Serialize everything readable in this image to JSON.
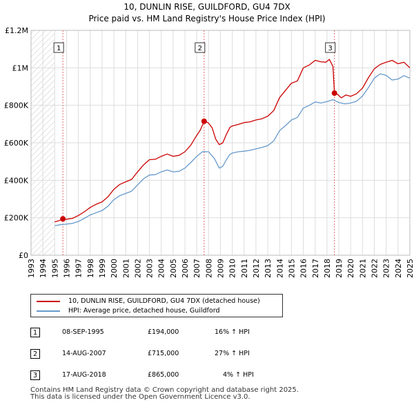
{
  "chart_data": {
    "type": "line",
    "title": "10, DUNLIN RISE, GUILDFORD, GU4 7DX",
    "subtitle": "Price paid vs. HM Land Registry's House Price Index (HPI)",
    "xlabel": "",
    "ylabel": "",
    "xlim": [
      1993,
      2025
    ],
    "ylim": [
      0,
      1200000
    ],
    "y_ticks": [
      {
        "value": 0,
        "label": "£0"
      },
      {
        "value": 200000,
        "label": "£200K"
      },
      {
        "value": 400000,
        "label": "£400K"
      },
      {
        "value": 600000,
        "label": "£600K"
      },
      {
        "value": 800000,
        "label": "£800K"
      },
      {
        "value": 1000000,
        "label": "£1M"
      },
      {
        "value": 1200000,
        "label": "£1.2M"
      }
    ],
    "x_ticks": [
      "1993",
      "1994",
      "1995",
      "1996",
      "1997",
      "1998",
      "1999",
      "2000",
      "2001",
      "2002",
      "2003",
      "2004",
      "2005",
      "2006",
      "2007",
      "2008",
      "2009",
      "2010",
      "2011",
      "2012",
      "2013",
      "2014",
      "2015",
      "2016",
      "2017",
      "2018",
      "2019",
      "2020",
      "2021",
      "2022",
      "2023",
      "2024",
      "2025"
    ],
    "grid": true,
    "shaded_region": {
      "from": 1993,
      "to": 1995.0
    },
    "series": [
      {
        "name": "10, DUNLIN RISE, GUILDFORD, GU4 7DX (detached house)",
        "color": "#cc0000",
        "points": [
          [
            1995.0,
            178000
          ],
          [
            1995.3,
            183000
          ],
          [
            1995.69,
            194000
          ],
          [
            1996.0,
            192000
          ],
          [
            1996.5,
            197000
          ],
          [
            1997.0,
            212000
          ],
          [
            1997.5,
            232000
          ],
          [
            1998.0,
            255000
          ],
          [
            1998.5,
            272000
          ],
          [
            1999.0,
            285000
          ],
          [
            1999.5,
            312000
          ],
          [
            2000.0,
            352000
          ],
          [
            2000.5,
            378000
          ],
          [
            2001.0,
            392000
          ],
          [
            2001.5,
            405000
          ],
          [
            2002.0,
            445000
          ],
          [
            2002.5,
            482000
          ],
          [
            2003.0,
            510000
          ],
          [
            2003.5,
            512000
          ],
          [
            2004.0,
            528000
          ],
          [
            2004.5,
            540000
          ],
          [
            2005.0,
            528000
          ],
          [
            2005.5,
            533000
          ],
          [
            2006.0,
            552000
          ],
          [
            2006.5,
            588000
          ],
          [
            2007.0,
            640000
          ],
          [
            2007.3,
            668000
          ],
          [
            2007.62,
            715000
          ],
          [
            2007.8,
            712000
          ],
          [
            2008.0,
            705000
          ],
          [
            2008.3,
            680000
          ],
          [
            2008.6,
            620000
          ],
          [
            2008.9,
            590000
          ],
          [
            2009.2,
            600000
          ],
          [
            2009.5,
            645000
          ],
          [
            2009.8,
            682000
          ],
          [
            2010.0,
            690000
          ],
          [
            2010.5,
            698000
          ],
          [
            2011.0,
            708000
          ],
          [
            2011.5,
            712000
          ],
          [
            2012.0,
            722000
          ],
          [
            2012.5,
            728000
          ],
          [
            2013.0,
            742000
          ],
          [
            2013.5,
            772000
          ],
          [
            2014.0,
            842000
          ],
          [
            2014.5,
            880000
          ],
          [
            2015.0,
            918000
          ],
          [
            2015.5,
            930000
          ],
          [
            2016.0,
            1000000
          ],
          [
            2016.5,
            1015000
          ],
          [
            2017.0,
            1040000
          ],
          [
            2017.5,
            1032000
          ],
          [
            2017.9,
            1030000
          ],
          [
            2018.2,
            1045000
          ],
          [
            2018.5,
            1008000
          ],
          [
            2018.63,
            865000
          ],
          [
            2018.9,
            858000
          ],
          [
            2019.2,
            840000
          ],
          [
            2019.6,
            855000
          ],
          [
            2020.0,
            848000
          ],
          [
            2020.5,
            862000
          ],
          [
            2021.0,
            892000
          ],
          [
            2021.5,
            948000
          ],
          [
            2022.0,
            995000
          ],
          [
            2022.5,
            1018000
          ],
          [
            2023.0,
            1030000
          ],
          [
            2023.5,
            1040000
          ],
          [
            2024.0,
            1022000
          ],
          [
            2024.5,
            1030000
          ],
          [
            2025.0,
            1000000
          ]
        ]
      },
      {
        "name": "HPI: Average price, detached house, Guildford",
        "color": "#6699cc",
        "points": [
          [
            1995.0,
            158000
          ],
          [
            1995.5,
            163000
          ],
          [
            1996.0,
            166000
          ],
          [
            1996.5,
            170000
          ],
          [
            1997.0,
            180000
          ],
          [
            1997.5,
            197000
          ],
          [
            1998.0,
            215000
          ],
          [
            1998.5,
            227000
          ],
          [
            1999.0,
            238000
          ],
          [
            1999.5,
            262000
          ],
          [
            2000.0,
            297000
          ],
          [
            2000.5,
            318000
          ],
          [
            2001.0,
            330000
          ],
          [
            2001.5,
            342000
          ],
          [
            2002.0,
            375000
          ],
          [
            2002.5,
            408000
          ],
          [
            2003.0,
            428000
          ],
          [
            2003.5,
            430000
          ],
          [
            2004.0,
            445000
          ],
          [
            2004.5,
            455000
          ],
          [
            2005.0,
            445000
          ],
          [
            2005.5,
            448000
          ],
          [
            2006.0,
            465000
          ],
          [
            2006.5,
            495000
          ],
          [
            2007.0,
            528000
          ],
          [
            2007.5,
            553000
          ],
          [
            2008.0,
            552000
          ],
          [
            2008.5,
            515000
          ],
          [
            2008.9,
            465000
          ],
          [
            2009.2,
            475000
          ],
          [
            2009.5,
            510000
          ],
          [
            2009.8,
            538000
          ],
          [
            2010.0,
            545000
          ],
          [
            2010.5,
            552000
          ],
          [
            2011.0,
            555000
          ],
          [
            2011.5,
            560000
          ],
          [
            2012.0,
            568000
          ],
          [
            2012.5,
            575000
          ],
          [
            2013.0,
            585000
          ],
          [
            2013.5,
            610000
          ],
          [
            2014.0,
            665000
          ],
          [
            2014.5,
            692000
          ],
          [
            2015.0,
            722000
          ],
          [
            2015.5,
            735000
          ],
          [
            2016.0,
            785000
          ],
          [
            2016.5,
            800000
          ],
          [
            2017.0,
            818000
          ],
          [
            2017.5,
            812000
          ],
          [
            2018.0,
            820000
          ],
          [
            2018.5,
            830000
          ],
          [
            2019.0,
            815000
          ],
          [
            2019.5,
            808000
          ],
          [
            2020.0,
            812000
          ],
          [
            2020.5,
            822000
          ],
          [
            2021.0,
            850000
          ],
          [
            2021.5,
            895000
          ],
          [
            2022.0,
            945000
          ],
          [
            2022.5,
            968000
          ],
          [
            2023.0,
            960000
          ],
          [
            2023.5,
            935000
          ],
          [
            2024.0,
            940000
          ],
          [
            2024.5,
            958000
          ],
          [
            2025.0,
            945000
          ]
        ]
      }
    ],
    "sales": [
      {
        "marker": "1",
        "x": 1995.69,
        "price": 194000,
        "date": "08-SEP-1995",
        "price_label": "£194,000",
        "hpi_label": "16% ↑ HPI"
      },
      {
        "marker": "2",
        "x": 2007.62,
        "price": 715000,
        "date": "14-AUG-2007",
        "price_label": "£715,000",
        "hpi_label": "27% ↑ HPI"
      },
      {
        "marker": "3",
        "x": 2018.63,
        "price": 865000,
        "date": "17-AUG-2018",
        "price_label": "£865,000",
        "hpi_label": "4% ↑ HPI"
      }
    ]
  },
  "legend": {
    "items": [
      {
        "label": "10, DUNLIN RISE, GUILDFORD, GU4 7DX (detached house)",
        "color": "#cc0000"
      },
      {
        "label": "HPI: Average price, detached house, Guildford",
        "color": "#6699cc"
      }
    ]
  },
  "footer": {
    "line1": "Contains HM Land Registry data © Crown copyright and database right 2025.",
    "line2": "This data is licensed under the Open Government Licence v3.0."
  }
}
